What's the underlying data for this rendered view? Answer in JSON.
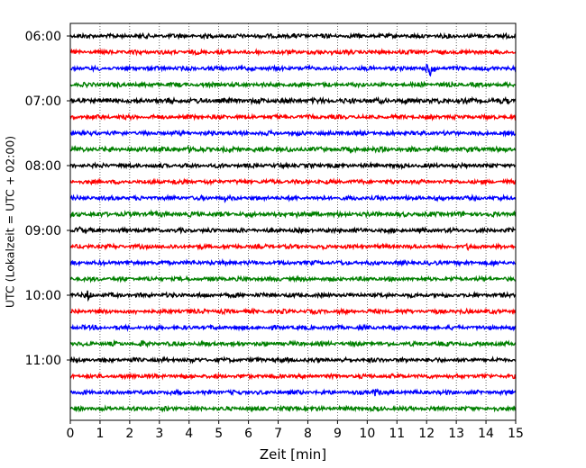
{
  "chart_data": {
    "type": "line",
    "title": "",
    "xlabel": "Zeit  [min]",
    "ylabel": "UTC (Lokalzeit = UTC + 02:00)",
    "xlim": [
      0,
      15
    ],
    "xticks": [
      "0",
      "1",
      "2",
      "3",
      "4",
      "5",
      "6",
      "7",
      "8",
      "9",
      "10",
      "11",
      "12",
      "13",
      "14",
      "15"
    ],
    "ytick_labels": [
      "06:00",
      "07:00",
      "08:00",
      "09:00",
      "10:00",
      "11:00"
    ],
    "grid": "vertical dotted",
    "colors": [
      "#000000",
      "#ff0000",
      "#0000ff",
      "#008000"
    ],
    "rows_per_hour": 4,
    "traces": [
      {
        "start": "06:00",
        "color": "#000000",
        "amplitude": 2.5,
        "events": [
          {
            "t": 7.0,
            "amp": 3
          }
        ]
      },
      {
        "start": "06:15",
        "color": "#ff0000",
        "amplitude": 2.5,
        "events": [
          {
            "t": 8.8,
            "amp": 3
          }
        ]
      },
      {
        "start": "06:30",
        "color": "#0000ff",
        "amplitude": 2.5,
        "events": [
          {
            "t": 12.15,
            "amp": 11
          }
        ]
      },
      {
        "start": "06:45",
        "color": "#008000",
        "amplitude": 2.5,
        "events": []
      },
      {
        "start": "07:00",
        "color": "#000000",
        "amplitude": 3.0,
        "events": [
          {
            "t": 14.7,
            "amp": 4
          }
        ]
      },
      {
        "start": "07:15",
        "color": "#ff0000",
        "amplitude": 2.5,
        "events": []
      },
      {
        "start": "07:30",
        "color": "#0000ff",
        "amplitude": 2.5,
        "events": []
      },
      {
        "start": "07:45",
        "color": "#008000",
        "amplitude": 2.8,
        "events": [
          {
            "t": 4.0,
            "amp": 4
          }
        ]
      },
      {
        "start": "08:00",
        "color": "#000000",
        "amplitude": 2.5,
        "events": []
      },
      {
        "start": "08:15",
        "color": "#ff0000",
        "amplitude": 2.5,
        "events": [
          {
            "t": 3.6,
            "amp": 4
          }
        ]
      },
      {
        "start": "08:30",
        "color": "#0000ff",
        "amplitude": 2.5,
        "events": [
          {
            "t": 5.2,
            "amp": 4
          },
          {
            "t": 9.7,
            "amp": 3
          }
        ]
      },
      {
        "start": "08:45",
        "color": "#008000",
        "amplitude": 2.8,
        "events": [
          {
            "t": 2.7,
            "amp": 4
          },
          {
            "t": 7.6,
            "amp": 4
          }
        ]
      },
      {
        "start": "09:00",
        "color": "#000000",
        "amplitude": 2.5,
        "events": [
          {
            "t": 0.3,
            "amp": 5
          }
        ]
      },
      {
        "start": "09:15",
        "color": "#ff0000",
        "amplitude": 2.5,
        "events": [
          {
            "t": 13.4,
            "amp": 4
          }
        ]
      },
      {
        "start": "09:30",
        "color": "#0000ff",
        "amplitude": 2.5,
        "events": [
          {
            "t": 4.7,
            "amp": 3
          }
        ]
      },
      {
        "start": "09:45",
        "color": "#008000",
        "amplitude": 2.5,
        "events": []
      },
      {
        "start": "10:00",
        "color": "#000000",
        "amplitude": 2.5,
        "events": [
          {
            "t": 0.6,
            "amp": 6
          },
          {
            "t": 3.2,
            "amp": 3
          }
        ]
      },
      {
        "start": "10:15",
        "color": "#ff0000",
        "amplitude": 2.5,
        "events": [
          {
            "t": 4.5,
            "amp": 3
          }
        ]
      },
      {
        "start": "10:30",
        "color": "#0000ff",
        "amplitude": 2.5,
        "events": [
          {
            "t": 0.4,
            "amp": 3
          }
        ]
      },
      {
        "start": "10:45",
        "color": "#008000",
        "amplitude": 2.5,
        "events": [
          {
            "t": 2.4,
            "amp": 4
          }
        ]
      },
      {
        "start": "11:00",
        "color": "#000000",
        "amplitude": 2.5,
        "events": [
          {
            "t": 6.9,
            "amp": 3
          }
        ]
      },
      {
        "start": "11:15",
        "color": "#ff0000",
        "amplitude": 2.5,
        "events": []
      },
      {
        "start": "11:30",
        "color": "#0000ff",
        "amplitude": 2.5,
        "events": [
          {
            "t": 10.3,
            "amp": 5
          }
        ]
      },
      {
        "start": "11:45",
        "color": "#008000",
        "amplitude": 2.5,
        "events": []
      }
    ]
  }
}
